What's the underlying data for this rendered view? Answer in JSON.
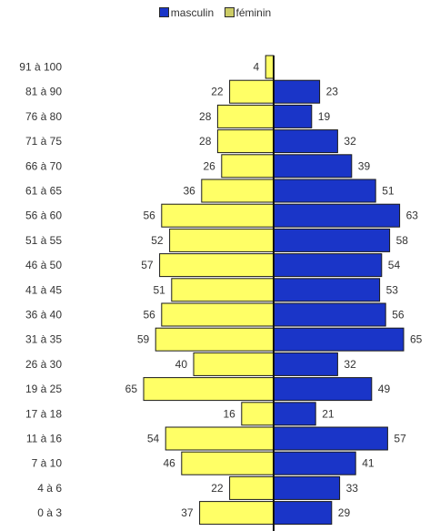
{
  "chart_data": {
    "type": "bar",
    "orientation": "horizontal-population-pyramid",
    "categories": [
      "91 à 100",
      "81 à 90",
      "76 à 80",
      "71 à 75",
      "66 à 70",
      "61 à 65",
      "56 à 60",
      "51 à 55",
      "46 à 50",
      "41 à 45",
      "36 à 40",
      "31 à 35",
      "26 à 30",
      "19 à 25",
      "17 à 18",
      "11 à 16",
      "7 à 10",
      "4 à 6",
      "0 à 3"
    ],
    "series": [
      {
        "name": "féminin",
        "side": "left",
        "color": "#ffff66",
        "values": [
          4,
          22,
          28,
          28,
          26,
          36,
          56,
          52,
          57,
          51,
          56,
          59,
          40,
          65,
          16,
          54,
          46,
          22,
          37
        ]
      },
      {
        "name": "masculin",
        "side": "right",
        "color": "#1a35c8",
        "values": [
          null,
          23,
          19,
          32,
          39,
          51,
          63,
          58,
          54,
          53,
          56,
          65,
          32,
          49,
          21,
          57,
          41,
          33,
          29
        ]
      }
    ],
    "legend": {
      "placement": "top-center",
      "entries": [
        "masculin",
        "féminin"
      ],
      "colors": [
        "#1a35c8",
        "#cccc66"
      ]
    },
    "title": "",
    "xlabel": "",
    "ylabel": "",
    "grid": false
  }
}
